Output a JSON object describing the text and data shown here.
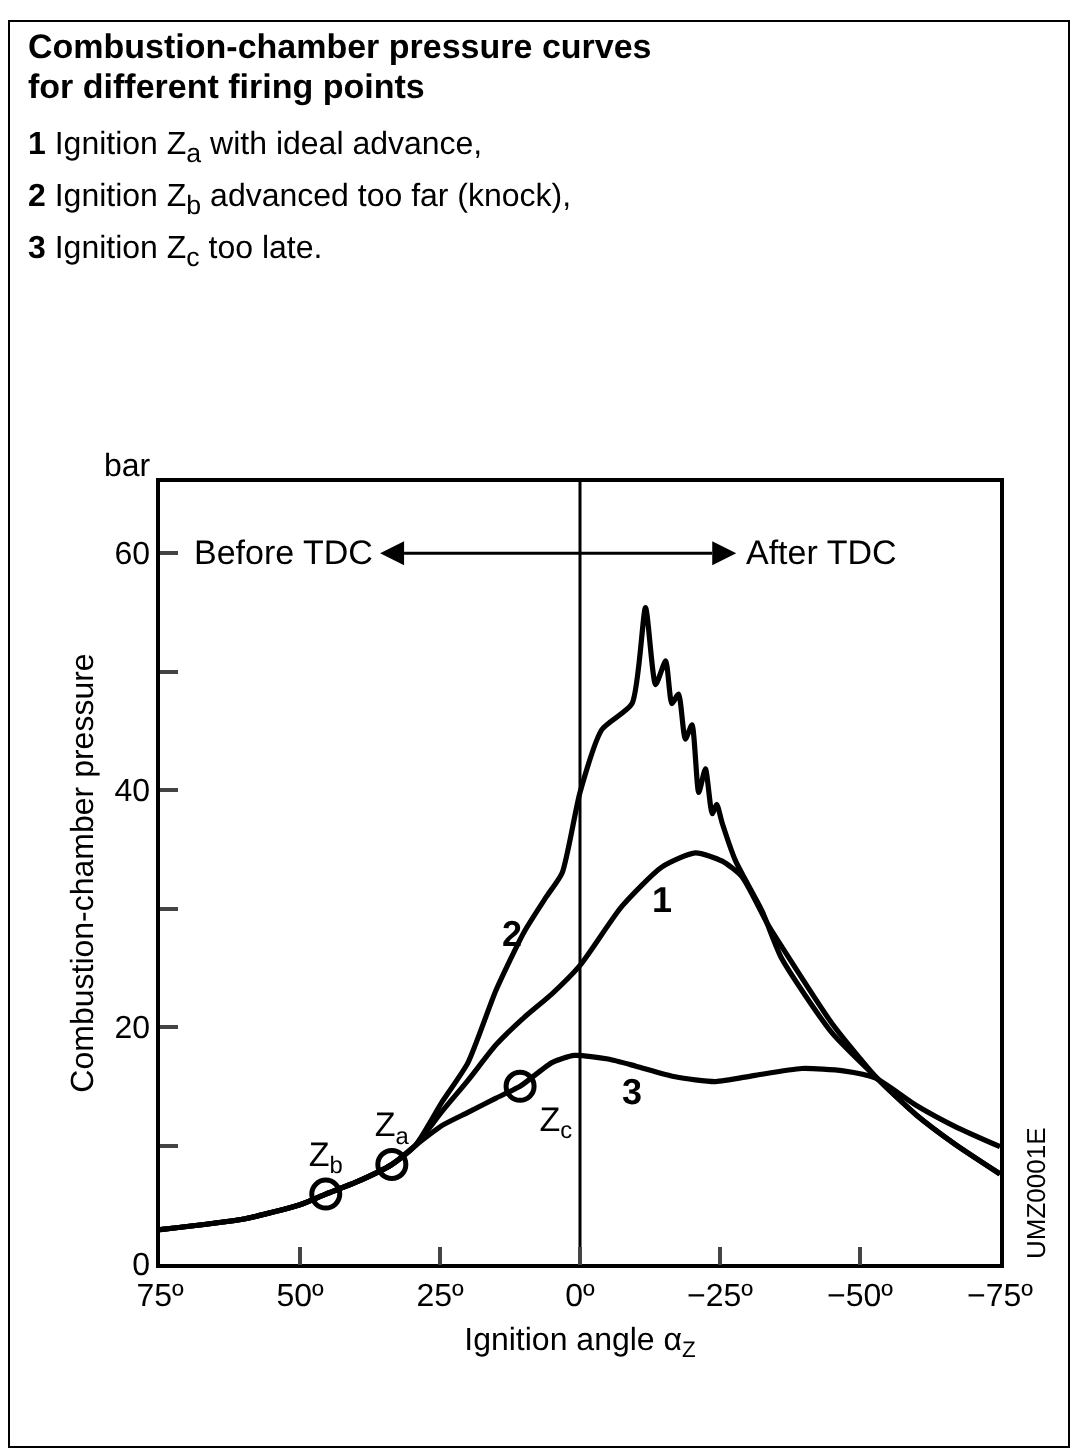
{
  "chart_data": {
    "type": "line",
    "title": "Combustion-chamber pressure curves for different firing points",
    "subtitle": "1 Ignition Z$_{a}$ with ideal advance,\n2 Ignition Z$_{b}$ advanced too far (knock),\n3 Ignition Z$_{c}$ too late.",
    "xlabel": "Ignition angle α$_{Z}$",
    "ylabel": "Combustion-chamber pressure",
    "xlim": [
      75,
      -75
    ],
    "xticks": [
      {
        "value": 75,
        "label": "75º"
      },
      {
        "value": 50,
        "label": "50º"
      },
      {
        "value": 25,
        "label": "25º"
      },
      {
        "value": 0,
        "label": "0º"
      },
      {
        "value": -25,
        "label": "−25º"
      },
      {
        "value": -50,
        "label": "−50º"
      },
      {
        "value": -75,
        "label": "−75º"
      }
    ],
    "ylim": [
      0,
      66
    ],
    "yticks": [
      0,
      {
        "value": 10,
        "label": null
      },
      20,
      {
        "value": 30,
        "label": null
      },
      40,
      {
        "value": 50,
        "label": null
      },
      60
    ],
    "grid": false,
    "legend": false,
    "line_style": "solid",
    "series": [
      {
        "type": "line",
        "name": "1",
        "color": "#000000",
        "x": [
          75,
          60,
          50,
          45.4,
          40,
          33.6,
          29.4,
          24.6,
          20,
          15,
          10,
          5,
          0,
          -7.5,
          -14.6,
          -20.6,
          -25.4,
          -28.9,
          -33.6,
          -36,
          -45,
          -53,
          -60,
          -67,
          -75
        ],
        "values": [
          2.9,
          3.8,
          5.0,
          5.9,
          6.9,
          8.4,
          10.0,
          12.9,
          15.5,
          18.5,
          20.8,
          22.8,
          25.2,
          30.2,
          33.5,
          34.7,
          34.0,
          32.7,
          28.6,
          26.8,
          20.3,
          15.7,
          12.6,
          10.1,
          7.6
        ]
      },
      {
        "type": "line",
        "name": "2",
        "color": "#000000",
        "x": [
          75,
          60,
          50,
          45.4,
          40,
          33.6,
          29.4,
          24.6,
          20,
          15,
          10,
          6,
          3.2,
          0,
          -3.9,
          -9.3,
          -11.7,
          -13.5,
          -15.3,
          -16.4,
          -17.6,
          -18.8,
          -20,
          -21.2,
          -22.4,
          -23.6,
          -24.4,
          -25.4,
          -27.8,
          -32.5,
          -36,
          -45,
          -53,
          -60,
          -67,
          -75
        ],
        "values": [
          2.9,
          3.8,
          5.0,
          5.9,
          6.9,
          8.4,
          10.0,
          13.7,
          17,
          23.1,
          28,
          31,
          33,
          39.8,
          45.1,
          47.3,
          55.4,
          48.9,
          50.9,
          47.3,
          48.1,
          44.3,
          45.5,
          39.8,
          41.8,
          38,
          38.8,
          37.2,
          34,
          29.8,
          25.8,
          19.5,
          15.7,
          12.6,
          10.1,
          7.6
        ]
      },
      {
        "type": "line",
        "name": "3",
        "color": "#000000",
        "x": [
          75,
          60,
          50,
          45.4,
          40,
          33.6,
          29.4,
          24.6,
          20,
          15,
          10.7,
          5,
          1,
          -5,
          -10,
          -17,
          -24.2,
          -31,
          -39.6,
          -47,
          -52.7,
          -60,
          -67,
          -75
        ],
        "values": [
          2.9,
          3.8,
          5.0,
          5.9,
          6.9,
          8.4,
          10.0,
          11.7,
          12.8,
          14.0,
          15.0,
          17.0,
          17.6,
          17.3,
          16.7,
          15.8,
          15.4,
          15.9,
          16.5,
          16.3,
          15.7,
          13.4,
          11.6,
          9.9
        ]
      },
      {
        "type": "scatter",
        "color": "#000000",
        "marker": "circle",
        "x": [
          45.4,
          33.6,
          10.7
        ],
        "values": [
          5.9,
          8.4,
          15.0
        ],
        "value_labels": [
          "Z$_{b}$",
          "Z$_{a}$",
          "Z$_{c}$"
        ]
      }
    ],
    "ref_lines": [
      {
        "axis": "x",
        "value": 0,
        "color": "#000000",
        "line_style": "solid"
      }
    ],
    "annotations": [
      "Before TDC",
      "After TDC",
      "bar",
      "UMZ0001E"
    ]
  }
}
